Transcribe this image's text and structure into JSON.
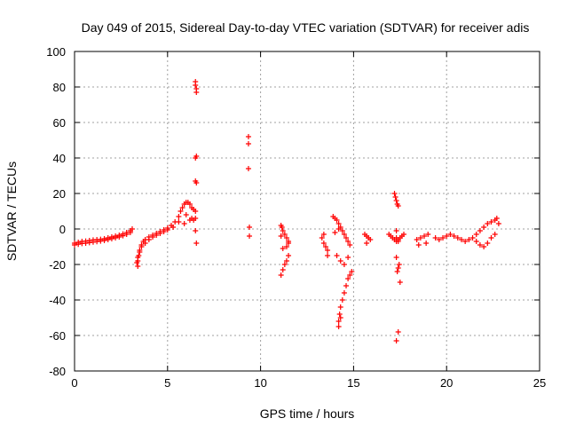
{
  "chart_data": {
    "type": "scatter",
    "title": "Day 049 of 2015, Sidereal Day-to-day VTEC variation (SDTVAR) for receiver adis",
    "xlabel": "GPS time / hours",
    "ylabel": "SDTVAR / TECUs",
    "xlim": [
      0,
      25
    ],
    "ylim": [
      -80,
      100
    ],
    "xticks": [
      0,
      5,
      10,
      15,
      20,
      25
    ],
    "yticks": [
      -80,
      -60,
      -40,
      -20,
      0,
      20,
      40,
      60,
      80,
      100
    ],
    "grid": true,
    "legend": "none",
    "marker": "plus",
    "colors": {
      "series": "#ff0000",
      "grid": "#a0a0a0",
      "axis": "#000000"
    },
    "series": [
      {
        "name": "SDTVAR",
        "x": [
          0.0,
          0.2,
          0.4,
          0.6,
          0.8,
          1.0,
          1.2,
          1.4,
          1.6,
          1.8,
          2.0,
          2.2,
          2.4,
          2.6,
          2.8,
          3.0,
          3.1,
          0.0,
          0.2,
          0.4,
          0.6,
          0.8,
          1.0,
          1.2,
          1.4,
          1.6,
          1.8,
          2.0,
          2.2,
          2.4,
          2.6,
          2.8,
          3.0,
          3.4,
          3.4,
          3.45,
          3.5,
          3.6,
          3.7,
          3.8,
          4.0,
          4.2,
          4.4,
          4.6,
          4.8,
          5.0,
          5.2,
          5.4,
          5.6,
          3.35,
          3.4,
          3.5,
          3.6,
          3.8,
          4.0,
          4.2,
          4.4,
          4.6,
          4.8,
          5.0,
          5.3,
          5.6,
          5.7,
          5.8,
          5.9,
          6.0,
          6.1,
          6.2,
          6.3,
          6.4,
          6.5,
          6.0,
          6.2,
          6.4,
          6.5,
          5.9,
          6.3,
          6.5,
          6.5,
          6.55,
          6.55,
          6.5,
          6.55,
          6.5,
          6.55,
          6.5,
          6.55,
          9.35,
          9.35,
          9.35,
          9.4,
          9.4,
          11.1,
          11.15,
          11.2,
          11.3,
          11.4,
          11.5,
          11.1,
          11.2,
          11.3,
          11.4,
          11.5,
          11.2,
          11.4,
          11.1,
          11.5,
          13.3,
          13.4,
          13.5,
          13.6,
          13.4,
          13.6,
          13.9,
          14.0,
          14.1,
          14.2,
          14.3,
          14.4,
          14.5,
          14.6,
          14.7,
          14.8,
          14.1,
          14.3,
          14.5,
          14.7,
          14.0,
          14.2,
          14.2,
          14.25,
          14.3,
          14.4,
          14.5,
          14.6,
          14.7,
          14.8,
          14.9,
          14.2,
          14.3,
          15.6,
          15.7,
          15.8,
          15.9,
          15.7,
          16.9,
          17.0,
          17.1,
          17.2,
          17.3,
          17.4,
          17.5,
          17.6,
          17.7,
          17.2,
          17.25,
          17.3,
          17.35,
          17.4,
          17.3,
          17.3,
          17.4,
          17.3,
          17.35,
          17.4,
          17.45,
          17.3,
          17.4,
          17.5,
          18.4,
          18.6,
          18.8,
          19.0,
          19.4,
          19.6,
          19.8,
          20.0,
          20.2,
          20.4,
          20.6,
          20.8,
          21.0,
          21.2,
          21.4,
          21.6,
          21.8,
          22.0,
          22.2,
          22.4,
          22.6,
          22.7,
          18.5,
          18.9,
          21.6,
          21.8,
          22.0,
          22.2,
          22.4,
          22.6,
          22.8
        ],
        "y": [
          -8,
          -7.5,
          -7,
          -6.8,
          -6.5,
          -6.2,
          -6,
          -5.8,
          -5.5,
          -5,
          -4.5,
          -4,
          -3.5,
          -2.8,
          -2,
          -1,
          0,
          -9,
          -8.6,
          -8.2,
          -8,
          -7.7,
          -7.4,
          -7.1,
          -6.8,
          -6.5,
          -6,
          -5.5,
          -5,
          -4.5,
          -3.8,
          -3,
          -2,
          -21,
          -18,
          -15,
          -12,
          -9,
          -7,
          -6,
          -4.5,
          -3.5,
          -2.5,
          -1.5,
          -0.5,
          0.5,
          2,
          4,
          7,
          -19,
          -16,
          -13,
          -10,
          -8,
          -6,
          -4.5,
          -3.5,
          -2.5,
          -1.5,
          -0.5,
          1,
          4,
          10,
          12,
          14,
          15,
          15,
          14,
          12,
          11,
          10,
          8,
          5,
          5,
          6,
          3,
          6,
          83,
          81,
          79,
          77,
          40,
          41,
          27,
          26,
          -1,
          -8,
          52,
          48,
          34,
          1,
          -4,
          2,
          1,
          -1,
          -3,
          -5,
          -7,
          -26,
          -23,
          -20,
          -18,
          -15,
          -11,
          -10,
          -4,
          -8,
          -5,
          -8,
          -10,
          -12,
          -3,
          -15,
          7,
          6,
          5,
          3,
          1,
          -1,
          -3,
          -5,
          -7,
          -9,
          -15,
          -18,
          -20,
          -16,
          -2,
          0,
          -52,
          -48,
          -44,
          -40,
          -36,
          -32,
          -28,
          -26,
          -24,
          -55,
          -50,
          -3,
          -4,
          -5,
          -6,
          -8,
          -3,
          -4,
          -5,
          -6,
          -7,
          -6,
          -5,
          -4,
          -3,
          20,
          18,
          16,
          14,
          13,
          -1,
          -5,
          -7,
          -16,
          -24,
          -22,
          -20,
          -63,
          -58,
          -30,
          -6,
          -5,
          -4,
          -3,
          -5,
          -6,
          -5,
          -4,
          -3,
          -4,
          -5,
          -6,
          -7,
          -6,
          -5,
          -3,
          -1,
          1,
          3,
          4,
          5,
          6,
          -9,
          -8,
          -7,
          -9,
          -10,
          -8,
          -5,
          -3,
          3
        ]
      }
    ]
  }
}
